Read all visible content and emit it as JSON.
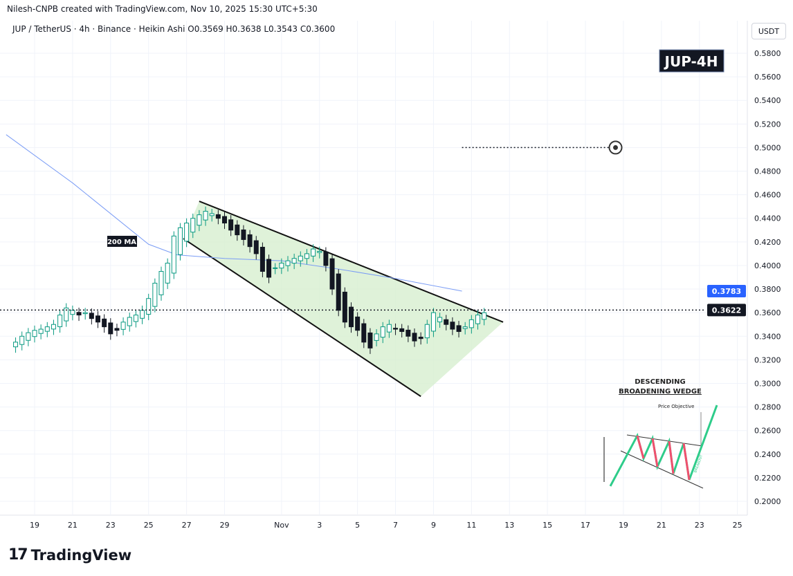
{
  "header": {
    "attribution": "Nilesh-CNPB created with TradingView.com, Nov 10, 2025 15:30 UTC+5:30",
    "symbol_line": "JUP / TetherUS · 4h · Binance · Heikin Ashi  O0.3569  H0.3638  L0.3543  C0.3600"
  },
  "axis_unit": "USDT",
  "badge": "JUP-4H",
  "ma_label": "200 MA",
  "logo_text": "TradingView",
  "colors": {
    "up": "#089981",
    "down": "#131722",
    "ma": "#7a9cf5",
    "wedge_fill": "#d7efd0",
    "badge_bg": "#131722",
    "last": "#131722",
    "ma_tag": "#2962ff"
  },
  "chart_data": {
    "type": "candlestick",
    "ylim": [
      0.19,
      0.59
    ],
    "xlim": [
      "2025-10-17T12",
      "2025-11-26T00"
    ],
    "grid": true,
    "y_ticks": [
      "0.5800",
      "0.5600",
      "0.5400",
      "0.5200",
      "0.5000",
      "0.4800",
      "0.4600",
      "0.4400",
      "0.4200",
      "0.4000",
      "0.3800",
      "0.3600",
      "0.3400",
      "0.3200",
      "0.3000",
      "0.2800",
      "0.2600",
      "0.2400",
      "0.2200",
      "0.2000"
    ],
    "x_ticks": [
      [
        "2025-10-19",
        "19"
      ],
      [
        "2025-10-21",
        "21"
      ],
      [
        "2025-10-23",
        "23"
      ],
      [
        "2025-10-25",
        "25"
      ],
      [
        "2025-10-27",
        "27"
      ],
      [
        "2025-10-29",
        "29"
      ],
      [
        "2025-11-01",
        "Nov"
      ],
      [
        "2025-11-03",
        "3"
      ],
      [
        "2025-11-05",
        "5"
      ],
      [
        "2025-11-07",
        "7"
      ],
      [
        "2025-11-09",
        "9"
      ],
      [
        "2025-11-11",
        "11"
      ],
      [
        "2025-11-13",
        "13"
      ],
      [
        "2025-11-15",
        "15"
      ],
      [
        "2025-11-17",
        "17"
      ],
      [
        "2025-11-19",
        "19"
      ],
      [
        "2025-11-21",
        "21"
      ],
      [
        "2025-11-23",
        "23"
      ],
      [
        "2025-11-25",
        "25"
      ]
    ],
    "candles_start": "2025-10-18T00",
    "candle_hours": 8,
    "closes": [
      0.335,
      0.34,
      0.343,
      0.345,
      0.346,
      0.348,
      0.35,
      0.358,
      0.364,
      0.362,
      0.358,
      0.36,
      0.355,
      0.352,
      0.348,
      0.342,
      0.345,
      0.352,
      0.356,
      0.358,
      0.362,
      0.372,
      0.385,
      0.395,
      0.402,
      0.425,
      0.432,
      0.436,
      0.44,
      0.443,
      0.446,
      0.444,
      0.44,
      0.436,
      0.43,
      0.426,
      0.422,
      0.416,
      0.41,
      0.395,
      0.39,
      0.398,
      0.402,
      0.404,
      0.406,
      0.408,
      0.41,
      0.414,
      0.412,
      0.4,
      0.38,
      0.362,
      0.352,
      0.348,
      0.345,
      0.335,
      0.33,
      0.342,
      0.348,
      0.35,
      0.346,
      0.344,
      0.34,
      0.336,
      0.338,
      0.35,
      0.36,
      0.356,
      0.35,
      0.346,
      0.344,
      0.348,
      0.354,
      0.358,
      0.36
    ],
    "ma200": [
      [
        "2025-10-17T12",
        0.511
      ],
      [
        "2025-10-21T00",
        0.47
      ],
      [
        "2025-10-25T00",
        0.418
      ],
      [
        "2025-10-26T12",
        0.409
      ],
      [
        "2025-10-29T00",
        0.406
      ],
      [
        "2025-11-01T00",
        0.404
      ],
      [
        "2025-11-04T00",
        0.397
      ],
      [
        "2025-11-07T00",
        0.389
      ],
      [
        "2025-11-10T12",
        0.3783
      ]
    ],
    "wedge": {
      "upper": [
        [
          "2025-10-27T16",
          0.4545
        ],
        [
          "2025-11-12T16",
          0.352
        ]
      ],
      "lower": [
        [
          "2025-10-26T20",
          0.4228
        ],
        [
          "2025-11-08T08",
          0.289
        ]
      ]
    },
    "target": {
      "price": 0.5,
      "from": "2025-11-10T12",
      "to": "2025-11-18T14"
    },
    "last_price": "0.3622",
    "ma_value": "0.3783"
  },
  "inset": {
    "title1": "DESCENDING",
    "title2": "BROADENING WEDGE",
    "objective": "Price Objective",
    "breakout": "BREAKOUT"
  }
}
